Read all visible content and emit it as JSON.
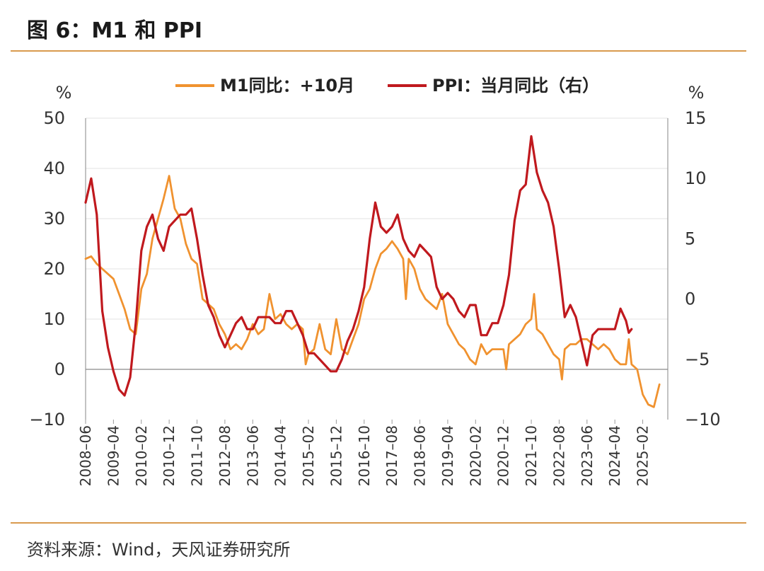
{
  "header": {
    "title": "图 6：M1 和 PPI"
  },
  "footer": {
    "source": "资料来源：Wind，天风证券研究所"
  },
  "chart_data": {
    "type": "line",
    "left_unit": "%",
    "right_unit": "%",
    "x_tick_labels": [
      "2008-06",
      "2009-04",
      "2010-02",
      "2010-12",
      "2011-10",
      "2012-08",
      "2013-06",
      "2014-04",
      "2015-02",
      "2015-12",
      "2016-10",
      "2017-08",
      "2018-06",
      "2019-04",
      "2020-02",
      "2020-12",
      "2021-10",
      "2022-08",
      "2023-06",
      "2024-04",
      "2025-02"
    ],
    "y_left": {
      "min": -10,
      "max": 50,
      "ticks": [
        -10,
        0,
        10,
        20,
        30,
        40,
        50
      ]
    },
    "y_right": {
      "min": -10,
      "max": 15,
      "ticks": [
        -10,
        -5,
        0,
        5,
        10,
        15
      ]
    },
    "grid": "horizontal",
    "legend_position": "top",
    "series": [
      {
        "name": "M1同比：+10月",
        "axis": "left",
        "color": "#f0922f",
        "points": [
          [
            "2008-06",
            22
          ],
          [
            "2008-08",
            22.5
          ],
          [
            "2008-10",
            21
          ],
          [
            "2008-12",
            20
          ],
          [
            "2009-02",
            19
          ],
          [
            "2009-04",
            18
          ],
          [
            "2009-06",
            15
          ],
          [
            "2009-08",
            12
          ],
          [
            "2009-10",
            8
          ],
          [
            "2009-12",
            7
          ],
          [
            "2010-02",
            16
          ],
          [
            "2010-04",
            19
          ],
          [
            "2010-06",
            26
          ],
          [
            "2010-08",
            30
          ],
          [
            "2010-10",
            34
          ],
          [
            "2010-12",
            38.5
          ],
          [
            "2011-02",
            32
          ],
          [
            "2011-04",
            30
          ],
          [
            "2011-06",
            25
          ],
          [
            "2011-08",
            22
          ],
          [
            "2011-10",
            21
          ],
          [
            "2011-12",
            14
          ],
          [
            "2012-02",
            13
          ],
          [
            "2012-04",
            12
          ],
          [
            "2012-06",
            9
          ],
          [
            "2012-08",
            7
          ],
          [
            "2012-10",
            4
          ],
          [
            "2012-12",
            5
          ],
          [
            "2013-02",
            4
          ],
          [
            "2013-04",
            6
          ],
          [
            "2013-06",
            9
          ],
          [
            "2013-08",
            7
          ],
          [
            "2013-10",
            8
          ],
          [
            "2013-12",
            15
          ],
          [
            "2014-02",
            10
          ],
          [
            "2014-04",
            11
          ],
          [
            "2014-06",
            9
          ],
          [
            "2014-08",
            8
          ],
          [
            "2014-10",
            9
          ],
          [
            "2014-12",
            8
          ],
          [
            "2015-01",
            1
          ],
          [
            "2015-02",
            3
          ],
          [
            "2015-04",
            4
          ],
          [
            "2015-06",
            9
          ],
          [
            "2015-08",
            4
          ],
          [
            "2015-10",
            3
          ],
          [
            "2015-12",
            10
          ],
          [
            "2016-02",
            4
          ],
          [
            "2016-04",
            3
          ],
          [
            "2016-06",
            6
          ],
          [
            "2016-08",
            9
          ],
          [
            "2016-10",
            14
          ],
          [
            "2016-12",
            16
          ],
          [
            "2017-02",
            20
          ],
          [
            "2017-04",
            23
          ],
          [
            "2017-06",
            24
          ],
          [
            "2017-08",
            25.5
          ],
          [
            "2017-10",
            24
          ],
          [
            "2017-12",
            22
          ],
          [
            "2018-01",
            14
          ],
          [
            "2018-02",
            22
          ],
          [
            "2018-04",
            20
          ],
          [
            "2018-06",
            16
          ],
          [
            "2018-08",
            14
          ],
          [
            "2018-10",
            13
          ],
          [
            "2018-12",
            12
          ],
          [
            "2019-02",
            15
          ],
          [
            "2019-04",
            9
          ],
          [
            "2019-06",
            7
          ],
          [
            "2019-08",
            5
          ],
          [
            "2019-10",
            4
          ],
          [
            "2019-12",
            2
          ],
          [
            "2020-02",
            1
          ],
          [
            "2020-04",
            5
          ],
          [
            "2020-06",
            3
          ],
          [
            "2020-08",
            4
          ],
          [
            "2020-10",
            4
          ],
          [
            "2020-12",
            4
          ],
          [
            "2021-01",
            0
          ],
          [
            "2021-02",
            5
          ],
          [
            "2021-04",
            6
          ],
          [
            "2021-06",
            7
          ],
          [
            "2021-08",
            9
          ],
          [
            "2021-10",
            10
          ],
          [
            "2021-11",
            15
          ],
          [
            "2021-12",
            8
          ],
          [
            "2022-02",
            7
          ],
          [
            "2022-04",
            5
          ],
          [
            "2022-06",
            3
          ],
          [
            "2022-08",
            2
          ],
          [
            "2022-09",
            -2
          ],
          [
            "2022-10",
            4
          ],
          [
            "2022-12",
            5
          ],
          [
            "2023-02",
            5
          ],
          [
            "2023-04",
            6
          ],
          [
            "2023-06",
            6
          ],
          [
            "2023-08",
            5
          ],
          [
            "2023-10",
            4
          ],
          [
            "2023-12",
            5
          ],
          [
            "2024-02",
            4
          ],
          [
            "2024-04",
            2
          ],
          [
            "2024-06",
            1
          ],
          [
            "2024-08",
            1
          ],
          [
            "2024-09",
            6
          ],
          [
            "2024-10",
            1
          ],
          [
            "2024-12",
            0
          ],
          [
            "2025-02",
            -5
          ],
          [
            "2025-04",
            -7
          ],
          [
            "2025-06",
            -7.5
          ],
          [
            "2025-08",
            -3
          ]
        ]
      },
      {
        "name": "PPI：当月同比（右）",
        "axis": "right",
        "color": "#c0191e",
        "points": [
          [
            "2008-06",
            8
          ],
          [
            "2008-08",
            10
          ],
          [
            "2008-10",
            7
          ],
          [
            "2008-12",
            -1
          ],
          [
            "2009-02",
            -4
          ],
          [
            "2009-04",
            -6
          ],
          [
            "2009-06",
            -7.5
          ],
          [
            "2009-08",
            -8
          ],
          [
            "2009-10",
            -6.5
          ],
          [
            "2009-12",
            -2
          ],
          [
            "2010-02",
            4
          ],
          [
            "2010-04",
            6
          ],
          [
            "2010-06",
            7
          ],
          [
            "2010-08",
            5
          ],
          [
            "2010-10",
            4
          ],
          [
            "2010-12",
            6
          ],
          [
            "2011-02",
            6.5
          ],
          [
            "2011-04",
            7
          ],
          [
            "2011-06",
            7
          ],
          [
            "2011-08",
            7.5
          ],
          [
            "2011-10",
            5
          ],
          [
            "2011-12",
            2
          ],
          [
            "2012-02",
            -0.5
          ],
          [
            "2012-04",
            -1.5
          ],
          [
            "2012-06",
            -3
          ],
          [
            "2012-08",
            -4
          ],
          [
            "2012-10",
            -3
          ],
          [
            "2012-12",
            -2
          ],
          [
            "2013-02",
            -1.5
          ],
          [
            "2013-04",
            -2.5
          ],
          [
            "2013-06",
            -2.5
          ],
          [
            "2013-08",
            -1.5
          ],
          [
            "2013-10",
            -1.5
          ],
          [
            "2013-12",
            -1.5
          ],
          [
            "2014-02",
            -2
          ],
          [
            "2014-04",
            -2
          ],
          [
            "2014-06",
            -1
          ],
          [
            "2014-08",
            -1
          ],
          [
            "2014-10",
            -2
          ],
          [
            "2014-12",
            -3
          ],
          [
            "2015-02",
            -4.5
          ],
          [
            "2015-04",
            -4.5
          ],
          [
            "2015-06",
            -5
          ],
          [
            "2015-08",
            -5.5
          ],
          [
            "2015-10",
            -6
          ],
          [
            "2015-12",
            -6
          ],
          [
            "2016-02",
            -5
          ],
          [
            "2016-04",
            -3.5
          ],
          [
            "2016-06",
            -2.5
          ],
          [
            "2016-08",
            -1
          ],
          [
            "2016-10",
            1
          ],
          [
            "2016-12",
            5
          ],
          [
            "2017-02",
            8
          ],
          [
            "2017-04",
            6
          ],
          [
            "2017-06",
            5.5
          ],
          [
            "2017-08",
            6
          ],
          [
            "2017-10",
            7
          ],
          [
            "2017-12",
            5
          ],
          [
            "2018-02",
            4
          ],
          [
            "2018-04",
            3.5
          ],
          [
            "2018-06",
            4.5
          ],
          [
            "2018-08",
            4
          ],
          [
            "2018-10",
            3.5
          ],
          [
            "2018-12",
            1
          ],
          [
            "2019-02",
            0
          ],
          [
            "2019-04",
            0.5
          ],
          [
            "2019-06",
            0
          ],
          [
            "2019-08",
            -1
          ],
          [
            "2019-10",
            -1.5
          ],
          [
            "2019-12",
            -0.5
          ],
          [
            "2020-02",
            -0.5
          ],
          [
            "2020-04",
            -3
          ],
          [
            "2020-06",
            -3
          ],
          [
            "2020-08",
            -2
          ],
          [
            "2020-10",
            -2
          ],
          [
            "2020-12",
            -0.5
          ],
          [
            "2021-02",
            2
          ],
          [
            "2021-04",
            6.5
          ],
          [
            "2021-06",
            9
          ],
          [
            "2021-08",
            9.5
          ],
          [
            "2021-10",
            13.5
          ],
          [
            "2021-12",
            10.5
          ],
          [
            "2022-02",
            9
          ],
          [
            "2022-04",
            8
          ],
          [
            "2022-06",
            6
          ],
          [
            "2022-08",
            2.5
          ],
          [
            "2022-10",
            -1.5
          ],
          [
            "2022-12",
            -0.5
          ],
          [
            "2023-02",
            -1.5
          ],
          [
            "2023-04",
            -3.5
          ],
          [
            "2023-06",
            -5.5
          ],
          [
            "2023-08",
            -3
          ],
          [
            "2023-10",
            -2.5
          ],
          [
            "2023-12",
            -2.5
          ],
          [
            "2024-02",
            -2.5
          ],
          [
            "2024-04",
            -2.5
          ],
          [
            "2024-06",
            -0.8
          ],
          [
            "2024-08",
            -1.8
          ],
          [
            "2024-09",
            -2.8
          ],
          [
            "2024-10",
            -2.5
          ]
        ]
      }
    ]
  }
}
